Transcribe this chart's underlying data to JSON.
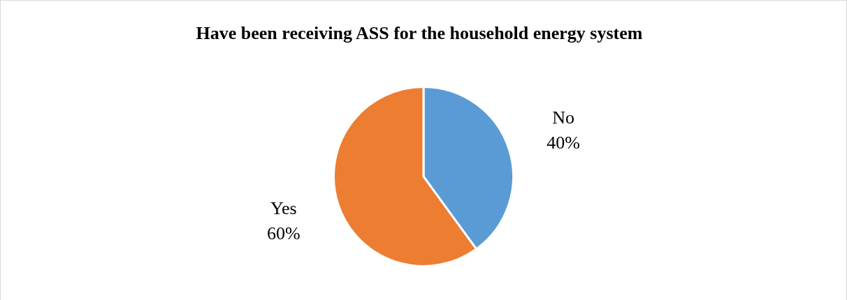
{
  "chart_data": {
    "type": "pie",
    "title": "Have been receiving ASS for the household energy system",
    "categories": [
      "No",
      "Yes"
    ],
    "values": [
      40,
      60
    ],
    "value_labels": [
      "40%",
      "60%"
    ],
    "colors": [
      "#5b9bd5",
      "#ed7d31"
    ],
    "legend": false
  }
}
